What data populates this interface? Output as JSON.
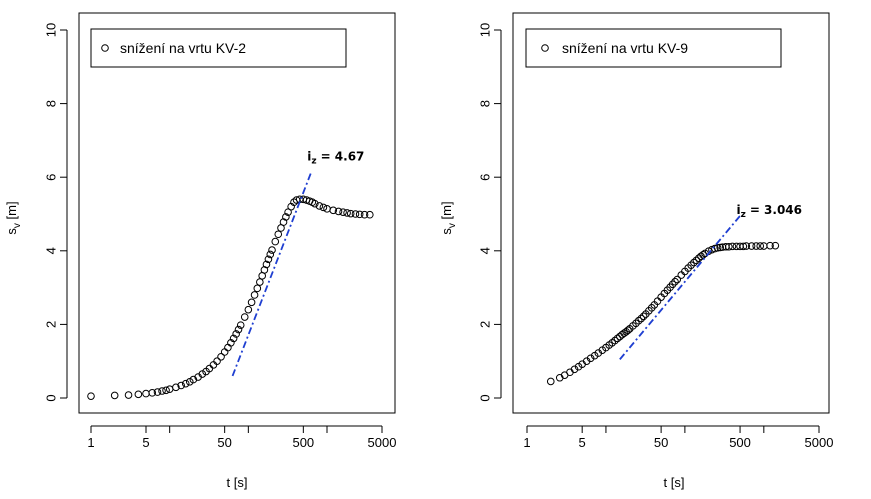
{
  "chart_data": [
    {
      "type": "scatter",
      "x_scale": "log",
      "xlabel": "t [s]",
      "ylabel_main": "s",
      "ylabel_sub": "v",
      "ylabel_unit": " [m]",
      "xlim": [
        1,
        5000
      ],
      "ylim": [
        0,
        10
      ],
      "x_ticks": [
        1,
        5,
        50,
        500,
        5000
      ],
      "x_tick_labels": [
        "1",
        "5",
        "50",
        "500",
        "5000"
      ],
      "x_minor_ticks": [
        10,
        100,
        1000
      ],
      "y_ticks": [
        0,
        2,
        4,
        6,
        8,
        10
      ],
      "y_tick_labels": [
        "0",
        "2",
        "4",
        "6",
        "8",
        "10"
      ],
      "legend": "snížení na vrtu KV-2",
      "legend_position": "top-left",
      "grid": false,
      "trend_line": {
        "x": [
          63,
          620
        ],
        "y": [
          0.6,
          6.1
        ],
        "color": "#1f3fd1",
        "style": "dash-dot"
      },
      "annotation": {
        "label_main": "i",
        "label_sub": "z",
        "value": "=  4.67",
        "x": 560,
        "y": 6.45
      },
      "series": [
        {
          "x": [
            1,
            2,
            3,
            4,
            5,
            6,
            7,
            8,
            9,
            10,
            12,
            14,
            16,
            18,
            20,
            23,
            26,
            29,
            32,
            36,
            40,
            45,
            50,
            55,
            60,
            65,
            70,
            75,
            80,
            90,
            100,
            110,
            120,
            130,
            140,
            150,
            160,
            170,
            180,
            190,
            200,
            220,
            240,
            260,
            280,
            300,
            320,
            350,
            380,
            410,
            450,
            500,
            550,
            600,
            650,
            700,
            800,
            900,
            1000,
            1200,
            1400,
            1600,
            1800,
            2000,
            2300,
            2600,
            3000,
            3500
          ],
          "y": [
            0.05,
            0.07,
            0.08,
            0.1,
            0.12,
            0.14,
            0.16,
            0.19,
            0.21,
            0.24,
            0.29,
            0.34,
            0.39,
            0.44,
            0.5,
            0.57,
            0.65,
            0.72,
            0.8,
            0.9,
            1.0,
            1.12,
            1.25,
            1.37,
            1.5,
            1.62,
            1.74,
            1.86,
            1.98,
            2.2,
            2.4,
            2.6,
            2.8,
            2.98,
            3.15,
            3.32,
            3.48,
            3.63,
            3.77,
            3.9,
            4.02,
            4.25,
            4.45,
            4.62,
            4.78,
            4.92,
            5.05,
            5.2,
            5.32,
            5.38,
            5.4,
            5.4,
            5.38,
            5.35,
            5.32,
            5.28,
            5.22,
            5.18,
            5.14,
            5.1,
            5.07,
            5.05,
            5.03,
            5.01,
            5.0,
            4.99,
            4.98,
            4.98
          ]
        }
      ]
    },
    {
      "type": "scatter",
      "x_scale": "log",
      "xlabel": "t [s]",
      "ylabel_main": "s",
      "ylabel_sub": "v",
      "ylabel_unit": " [m]",
      "xlim": [
        1,
        5000
      ],
      "ylim": [
        0,
        10
      ],
      "x_ticks": [
        1,
        5,
        50,
        500,
        5000
      ],
      "x_tick_labels": [
        "1",
        "5",
        "50",
        "500",
        "5000"
      ],
      "x_minor_ticks": [
        10,
        100,
        1000
      ],
      "y_ticks": [
        0,
        2,
        4,
        6,
        8,
        10
      ],
      "y_tick_labels": [
        "0",
        "2",
        "4",
        "6",
        "8",
        "10"
      ],
      "legend": "snížení na vrtu KV-9",
      "legend_position": "top-left",
      "grid": false,
      "trend_line": {
        "x": [
          15,
          500
        ],
        "y": [
          1.05,
          4.95
        ],
        "color": "#1f3fd1",
        "style": "dash-dot"
      },
      "annotation": {
        "label_main": "i",
        "label_sub": "z",
        "value": "=  3.046",
        "x": 450,
        "y": 5.0
      },
      "series": [
        {
          "x": [
            2,
            2.6,
            3,
            3.5,
            4,
            4.5,
            5,
            5.7,
            6.4,
            7.2,
            8,
            9,
            10,
            11,
            12,
            13,
            14,
            15,
            16,
            17,
            18,
            19,
            20,
            22,
            24,
            26,
            28,
            30,
            32,
            35,
            38,
            41,
            45,
            50,
            55,
            60,
            65,
            70,
            75,
            80,
            90,
            100,
            110,
            120,
            130,
            140,
            150,
            160,
            170,
            180,
            200,
            220,
            240,
            260,
            280,
            300,
            330,
            360,
            400,
            450,
            500,
            550,
            600,
            700,
            800,
            900,
            1000,
            1200,
            1400
          ],
          "y": [
            0.45,
            0.55,
            0.62,
            0.7,
            0.78,
            0.85,
            0.92,
            1.0,
            1.08,
            1.15,
            1.22,
            1.3,
            1.37,
            1.44,
            1.5,
            1.56,
            1.62,
            1.67,
            1.72,
            1.76,
            1.8,
            1.84,
            1.88,
            1.96,
            2.03,
            2.1,
            2.16,
            2.22,
            2.28,
            2.37,
            2.45,
            2.53,
            2.63,
            2.74,
            2.84,
            2.93,
            3.01,
            3.09,
            3.16,
            3.22,
            3.34,
            3.44,
            3.53,
            3.61,
            3.68,
            3.74,
            3.8,
            3.85,
            3.89,
            3.93,
            3.99,
            4.03,
            4.06,
            4.08,
            4.09,
            4.1,
            4.11,
            4.11,
            4.12,
            4.12,
            4.12,
            4.12,
            4.13,
            4.13,
            4.13,
            4.13,
            4.13,
            4.14,
            4.14
          ]
        }
      ]
    }
  ]
}
